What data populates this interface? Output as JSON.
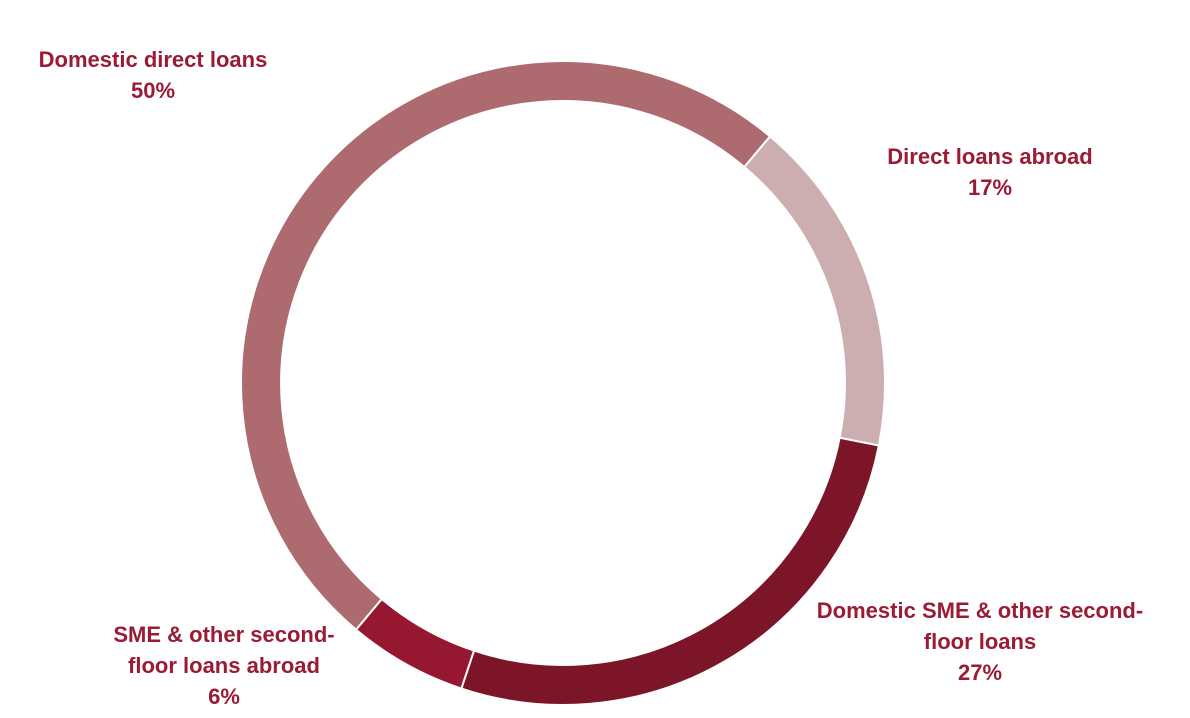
{
  "chart_data": {
    "type": "pie",
    "variant": "donut",
    "categories": [
      "Domestic direct loans",
      "Direct loans abroad",
      "Domestic SME & other second-floor loans",
      "SME & other second-floor loans abroad"
    ],
    "values": [
      50,
      17,
      27,
      6
    ],
    "unit": "%",
    "colors": [
      "#ae6b6f",
      "#ccadb0",
      "#7b1527",
      "#951830"
    ],
    "legend": "none",
    "labels": [
      {
        "lines": [
          "Domestic direct loans"
        ],
        "value": "50%"
      },
      {
        "lines": [
          "Direct loans abroad"
        ],
        "value": "17%"
      },
      {
        "lines": [
          "Domestic SME & other second-",
          "floor loans"
        ],
        "value": "27%"
      },
      {
        "lines": [
          "SME & other second-",
          "floor loans abroad"
        ],
        "value": "6%"
      }
    ],
    "label_color": "#9b1b34"
  }
}
